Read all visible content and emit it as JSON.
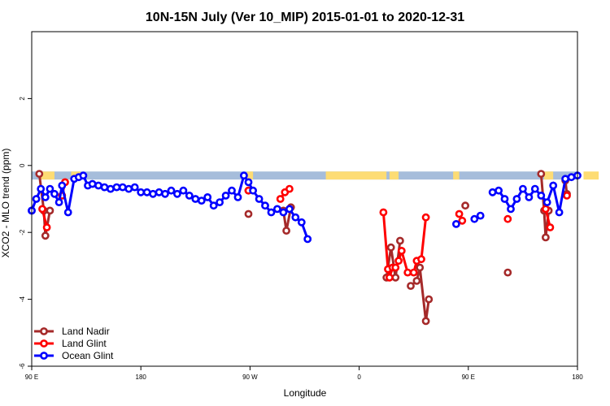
{
  "chart_data": {
    "type": "line",
    "title": "10N-15N July (Ver 10_MIP)   2015-01-01 to 2020-12-31",
    "xlabel": "Longitude",
    "ylabel": "XCO2 - MLO trend (ppm)",
    "xlim": [
      -90,
      90
    ],
    "ylim": [
      -6,
      4
    ],
    "x_ticks": [
      {
        "value": -90,
        "label": "90 E"
      },
      {
        "value": -54,
        "label": "180"
      },
      {
        "value": -18,
        "label": "90 W"
      },
      {
        "value": 18,
        "label": "0"
      },
      {
        "value": 54,
        "label": "90 E"
      },
      {
        "value": 90,
        "label": "180"
      }
    ],
    "y_ticks": [
      {
        "value": -6,
        "label": "-6"
      },
      {
        "value": -4,
        "label": "-4"
      },
      {
        "value": -2,
        "label": "-2"
      },
      {
        "value": 0,
        "label": "0"
      },
      {
        "value": 2,
        "label": "2"
      }
    ],
    "grid": false,
    "legend_position": "bottom-left",
    "land_band": {
      "y_top": -0.18,
      "y_bottom": -0.42,
      "ocean_color": "#a6bddb",
      "land_color": "#fddc74"
    },
    "land_segments": [
      [
        -87,
        -82.5
      ],
      [
        -77,
        -74
      ],
      [
        -19,
        -17
      ],
      [
        7,
        27
      ],
      [
        28,
        31
      ],
      [
        49,
        51
      ],
      [
        79,
        82
      ],
      [
        92,
        97
      ]
    ],
    "series": [
      {
        "name": "Land Nadir",
        "color": "#a52a2a",
        "points": [
          [
            -87.5,
            -0.25
          ],
          [
            -86,
            -1.35
          ],
          [
            -85.5,
            -2.1
          ],
          [
            -84,
            -1.35
          ],
          [
            null,
            null
          ],
          [
            -18.5,
            -1.45
          ],
          [
            null,
            null
          ],
          [
            -7,
            -1.35
          ],
          [
            -6,
            -1.95
          ],
          [
            -4.5,
            -1.25
          ],
          [
            null,
            null
          ],
          [
            27,
            -3.35
          ],
          [
            28.5,
            -2.45
          ],
          [
            30,
            -3.35
          ],
          [
            31.5,
            -2.25
          ],
          [
            null,
            null
          ],
          [
            35,
            -3.6
          ],
          [
            37,
            -3.45
          ],
          [
            38,
            -3.05
          ],
          [
            40,
            -4.65
          ],
          [
            41,
            -4.0
          ],
          [
            null,
            null
          ],
          [
            53,
            -1.2
          ],
          [
            null,
            null
          ],
          [
            67,
            -3.2
          ],
          [
            null,
            null
          ],
          [
            78,
            -0.25
          ],
          [
            79,
            -1.35
          ],
          [
            79.5,
            -2.15
          ],
          [
            80.5,
            -1.35
          ],
          [
            null,
            null
          ],
          [
            86,
            -0.45
          ],
          [
            86.5,
            -0.85
          ],
          [
            null,
            null
          ],
          [
            -18.5,
            -0.75
          ]
        ]
      },
      {
        "name": "Land Glint",
        "color": "#ff0000",
        "points": [
          [
            -86.5,
            -1.3
          ],
          [
            -85,
            -1.85
          ],
          [
            null,
            null
          ],
          [
            -80,
            -0.9
          ],
          [
            -79,
            -0.5
          ],
          [
            null,
            null
          ],
          [
            -18.5,
            -0.75
          ],
          [
            null,
            null
          ],
          [
            -8,
            -1.0
          ],
          [
            -6.5,
            -0.8
          ],
          [
            -5,
            -0.7
          ],
          [
            null,
            null
          ],
          [
            26,
            -1.4
          ],
          [
            27.5,
            -3.1
          ],
          [
            28,
            -3.35
          ],
          [
            29,
            -3.05
          ],
          [
            30,
            -3.05
          ],
          [
            31,
            -2.85
          ],
          [
            32,
            -2.55
          ],
          [
            34,
            -3.2
          ],
          [
            36,
            -3.2
          ],
          [
            37,
            -2.85
          ],
          [
            38.5,
            -2.8
          ],
          [
            40,
            -1.55
          ],
          [
            null,
            null
          ],
          [
            51,
            -1.45
          ],
          [
            52,
            -1.65
          ],
          [
            null,
            null
          ],
          [
            67,
            -1.6
          ],
          [
            null,
            null
          ],
          [
            79.5,
            -1.3
          ],
          [
            81,
            -1.85
          ],
          [
            null,
            null
          ],
          [
            86.5,
            -0.9
          ]
        ]
      },
      {
        "name": "Ocean Glint",
        "color": "#0000ff",
        "points": [
          [
            -90,
            -1.35
          ],
          [
            -88.5,
            -1.0
          ],
          [
            -87,
            -0.7
          ],
          [
            -85.5,
            -0.95
          ],
          [
            -84,
            -0.7
          ],
          [
            -82.5,
            -0.85
          ],
          [
            -81,
            -1.1
          ],
          [
            -80,
            -0.6
          ],
          [
            -78,
            -1.4
          ],
          [
            -76,
            -0.4
          ],
          [
            -74.5,
            -0.35
          ],
          [
            -73,
            -0.3
          ],
          [
            -71.5,
            -0.6
          ],
          [
            -70,
            -0.55
          ],
          [
            -68,
            -0.6
          ],
          [
            -66,
            -0.65
          ],
          [
            -64,
            -0.7
          ],
          [
            -62,
            -0.65
          ],
          [
            -60,
            -0.65
          ],
          [
            -58,
            -0.7
          ],
          [
            -56,
            -0.65
          ],
          [
            -54,
            -0.8
          ],
          [
            -52,
            -0.8
          ],
          [
            -50,
            -0.85
          ],
          [
            -48,
            -0.8
          ],
          [
            -46,
            -0.85
          ],
          [
            -44,
            -0.75
          ],
          [
            -42,
            -0.85
          ],
          [
            -40,
            -0.75
          ],
          [
            -38,
            -0.9
          ],
          [
            -36,
            -1.0
          ],
          [
            -34,
            -1.05
          ],
          [
            -32,
            -0.95
          ],
          [
            -30,
            -1.2
          ],
          [
            -28,
            -1.1
          ],
          [
            -26,
            -0.9
          ],
          [
            -24,
            -0.75
          ],
          [
            -22,
            -0.95
          ],
          [
            -20,
            -0.3
          ],
          [
            -18.5,
            -0.5
          ],
          [
            -17,
            -0.75
          ],
          [
            -15,
            -1.0
          ],
          [
            -13,
            -1.2
          ],
          [
            -11,
            -1.4
          ],
          [
            -9,
            -1.3
          ],
          [
            -7,
            -1.4
          ],
          [
            -5,
            -1.3
          ],
          [
            -3,
            -1.55
          ],
          [
            -1,
            -1.7
          ],
          [
            1,
            -2.2
          ],
          [
            null,
            null
          ],
          [
            50,
            -1.75
          ],
          [
            null,
            null
          ],
          [
            56,
            -1.6
          ],
          [
            58,
            -1.5
          ],
          [
            null,
            null
          ],
          [
            62,
            -0.8
          ],
          [
            64,
            -0.75
          ],
          [
            66,
            -1.0
          ],
          [
            68,
            -1.3
          ],
          [
            70,
            -1.0
          ],
          [
            72,
            -0.7
          ],
          [
            74,
            -0.95
          ],
          [
            76,
            -0.7
          ],
          [
            78,
            -0.9
          ],
          [
            80,
            -1.1
          ],
          [
            82,
            -0.6
          ],
          [
            84,
            -1.4
          ],
          [
            86,
            -0.4
          ],
          [
            88,
            -0.35
          ],
          [
            90,
            -0.3
          ],
          [
            null,
            null
          ],
          [
            -90,
            -1.35
          ]
        ]
      }
    ]
  }
}
